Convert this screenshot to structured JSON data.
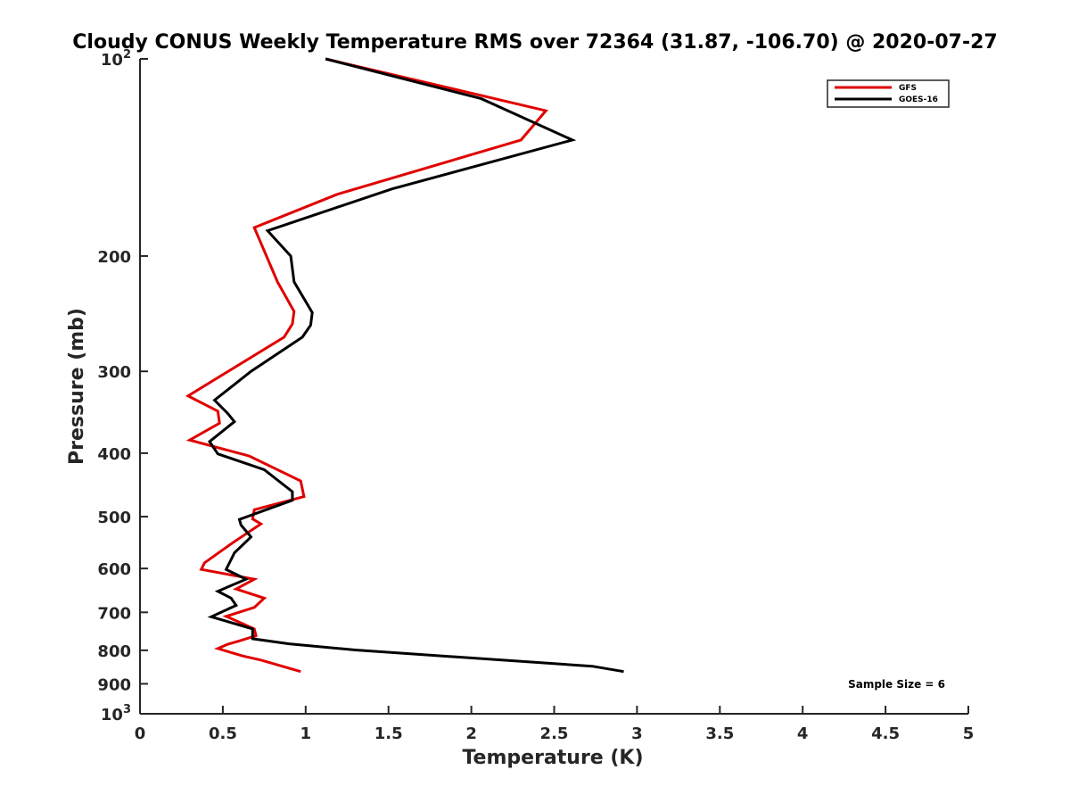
{
  "chart_data": {
    "type": "line",
    "title": "Cloudy CONUS Weekly Temperature RMS over 72364 (31.87, -106.70) @ 2020-07-27",
    "xlabel": "Temperature (K)",
    "ylabel": "Pressure (mb)",
    "xlim": [
      0,
      5
    ],
    "ylim": [
      100,
      1000
    ],
    "y_scale": "log",
    "y_reversed": true,
    "grid": false,
    "legend_position": "top-right",
    "x_ticks": [
      {
        "value": 0,
        "label": "0"
      },
      {
        "value": 0.5,
        "label": "0.5"
      },
      {
        "value": 1,
        "label": "1"
      },
      {
        "value": 1.5,
        "label": "1.5"
      },
      {
        "value": 2,
        "label": "2"
      },
      {
        "value": 2.5,
        "label": "2.5"
      },
      {
        "value": 3,
        "label": "3"
      },
      {
        "value": 3.5,
        "label": "3.5"
      },
      {
        "value": 4,
        "label": "4"
      },
      {
        "value": 4.5,
        "label": "4.5"
      },
      {
        "value": 5,
        "label": "5"
      }
    ],
    "y_ticks": [
      {
        "value": 100,
        "label": "10",
        "sup": "2"
      },
      {
        "value": 200,
        "label": "200"
      },
      {
        "value": 300,
        "label": "300"
      },
      {
        "value": 400,
        "label": "400"
      },
      {
        "value": 500,
        "label": "500"
      },
      {
        "value": 600,
        "label": "600"
      },
      {
        "value": 700,
        "label": "700"
      },
      {
        "value": 800,
        "label": "800"
      },
      {
        "value": 900,
        "label": "900"
      },
      {
        "value": 1000,
        "label": "10",
        "sup": "3"
      }
    ],
    "series": [
      {
        "name": "GFS",
        "color": "#e00000",
        "points": [
          [
            0.97,
            862
          ],
          [
            0.73,
            828
          ],
          [
            0.62,
            816
          ],
          [
            0.47,
            795
          ],
          [
            0.53,
            783
          ],
          [
            0.6,
            774
          ],
          [
            0.7,
            760
          ],
          [
            0.69,
            742
          ],
          [
            0.52,
            710
          ],
          [
            0.69,
            688
          ],
          [
            0.75,
            666
          ],
          [
            0.58,
            645
          ],
          [
            0.69,
            623
          ],
          [
            0.37,
            602
          ],
          [
            0.39,
            588
          ],
          [
            0.56,
            548
          ],
          [
            0.73,
            513
          ],
          [
            0.68,
            504
          ],
          [
            0.69,
            488
          ],
          [
            0.99,
            466
          ],
          [
            0.97,
            441
          ],
          [
            0.66,
            404
          ],
          [
            0.3,
            382
          ],
          [
            0.48,
            360
          ],
          [
            0.47,
            345
          ],
          [
            0.29,
            327
          ],
          [
            0.87,
            266
          ],
          [
            0.92,
            254
          ],
          [
            0.93,
            243
          ],
          [
            0.83,
            219
          ],
          [
            0.69,
            181
          ],
          [
            1.19,
            161
          ],
          [
            2.3,
            133
          ],
          [
            2.45,
            120
          ],
          [
            1.12,
            100
          ]
        ]
      },
      {
        "name": "GOES-16",
        "color": "#000000",
        "points": [
          [
            2.92,
            862
          ],
          [
            2.73,
            846
          ],
          [
            1.3,
            799
          ],
          [
            0.9,
            782
          ],
          [
            0.68,
            768
          ],
          [
            0.68,
            742
          ],
          [
            0.43,
            711
          ],
          [
            0.58,
            683
          ],
          [
            0.55,
            666
          ],
          [
            0.47,
            650
          ],
          [
            0.64,
            623
          ],
          [
            0.52,
            602
          ],
          [
            0.57,
            568
          ],
          [
            0.67,
            537
          ],
          [
            0.61,
            515
          ],
          [
            0.6,
            505
          ],
          [
            0.92,
            472
          ],
          [
            0.92,
            458
          ],
          [
            0.75,
            424
          ],
          [
            0.47,
            401
          ],
          [
            0.42,
            384
          ],
          [
            0.57,
            358
          ],
          [
            0.53,
            348
          ],
          [
            0.45,
            332
          ],
          [
            0.67,
            300
          ],
          [
            0.98,
            266
          ],
          [
            1.03,
            255
          ],
          [
            1.04,
            244
          ],
          [
            0.93,
            219
          ],
          [
            0.91,
            200
          ],
          [
            0.77,
            183
          ],
          [
            1.52,
            158
          ],
          [
            2.61,
            133
          ],
          [
            2.06,
            115
          ],
          [
            1.12,
            100
          ]
        ]
      }
    ],
    "annotation": "Sample Size = 6"
  }
}
